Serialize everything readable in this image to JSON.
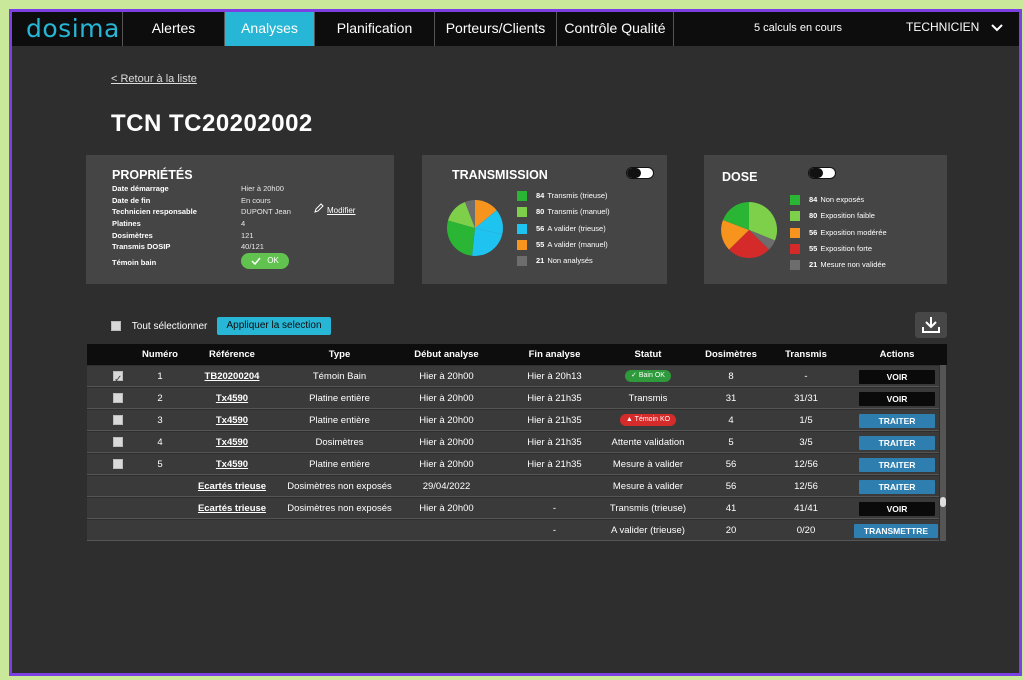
{
  "topbar": {
    "logo": "dosima",
    "tabs": [
      {
        "label": "Alertes"
      },
      {
        "label": "Analyses"
      },
      {
        "label": "Planification"
      },
      {
        "label": "Porteurs/Clients"
      },
      {
        "label": "Contrôle Qualité"
      }
    ],
    "active_tab": "Analyses",
    "calculs": "5 calculs en cours",
    "user": "TECHNICIEN"
  },
  "back_link": "< Retour à la liste",
  "page_title": "TCN  TC20202002",
  "properties": {
    "title": "PROPRIÉTÉS",
    "rows": [
      {
        "label": "Date démarrage",
        "value": "Hier à 20h00"
      },
      {
        "label": "Date de fin",
        "value": "En cours"
      },
      {
        "label": "Technicien responsable",
        "value": "DUPONT Jean"
      },
      {
        "label": "Platines",
        "value": "4"
      },
      {
        "label": "Dosimètres",
        "value": "121"
      },
      {
        "label": "Transmis DOSIP",
        "value": "40/121"
      },
      {
        "label": "Témoin bain",
        "value": ""
      }
    ],
    "modify_label": "Modifier",
    "temoin_status": "OK"
  },
  "transmission": {
    "title": "TRANSMISSION",
    "items": [
      {
        "count": "84",
        "label": "Transmis (trieuse)",
        "color": "#2bb534"
      },
      {
        "count": "80",
        "label": "Transmis (manuel)",
        "color": "#7ed04a"
      },
      {
        "count": "56",
        "label": "A valider (trieuse)",
        "color": "#1ec3f0"
      },
      {
        "count": "55",
        "label": "A valider (manuel)",
        "color": "#f7941d"
      },
      {
        "count": "21",
        "label": "Non analysés",
        "color": "#6d6d6d"
      }
    ]
  },
  "dose": {
    "title": "DOSE",
    "items": [
      {
        "count": "84",
        "label": "Non exposés",
        "color": "#2bb534"
      },
      {
        "count": "80",
        "label": "Exposition faible",
        "color": "#7ed04a"
      },
      {
        "count": "56",
        "label": "Exposition modérée",
        "color": "#f7941d"
      },
      {
        "count": "55",
        "label": "Exposition forte",
        "color": "#d42a2a"
      },
      {
        "count": "21",
        "label": "Mesure non validée",
        "color": "#6d6d6d"
      }
    ]
  },
  "toolbar": {
    "select_all": "Tout sélectionner",
    "apply": "Appliquer la selection"
  },
  "table": {
    "headers": [
      "Numéro",
      "Référence",
      "Type",
      "Début analyse",
      "Fin analyse",
      "Statut",
      "Dosimètres",
      "Transmis",
      "Actions"
    ],
    "rows": [
      {
        "checkbox": true,
        "checked": true,
        "num": "1",
        "ref": "TB20200204",
        "type": "Témoin Bain",
        "debut": "Hier à 20h00",
        "fin": "Hier à 20h13",
        "statut": "Bain OK",
        "statut_kind": "ok",
        "dosimetres": "8",
        "transmis": "-",
        "action": "VOIR",
        "action_kind": "voir"
      },
      {
        "checkbox": true,
        "checked": false,
        "num": "2",
        "ref": "Tx4590",
        "type": "Platine entière",
        "debut": "Hier à 20h00",
        "fin": "Hier à 21h35",
        "statut": "Transmis",
        "statut_kind": "text",
        "dosimetres": "31",
        "transmis": "31/31",
        "action": "VOIR",
        "action_kind": "voir"
      },
      {
        "checkbox": true,
        "checked": false,
        "num": "3",
        "ref": "Tx4590",
        "type": "Platine entière",
        "debut": "Hier à 20h00",
        "fin": "Hier à 21h35",
        "statut": "Témoin KO",
        "statut_kind": "ko",
        "dosimetres": "4",
        "transmis": "1/5",
        "action": "TRAITER",
        "action_kind": "traiter"
      },
      {
        "checkbox": true,
        "checked": false,
        "num": "4",
        "ref": "Tx4590",
        "type": "Dosimètres",
        "debut": "Hier à 20h00",
        "fin": "Hier à 21h35",
        "statut": "Attente validation",
        "statut_kind": "text",
        "dosimetres": "5",
        "transmis": "3/5",
        "action": "TRAITER",
        "action_kind": "traiter"
      },
      {
        "checkbox": true,
        "checked": false,
        "num": "5",
        "ref": "Tx4590",
        "type": "Platine entière",
        "debut": "Hier à 20h00",
        "fin": "Hier à 21h35",
        "statut": "Mesure à valider",
        "statut_kind": "text",
        "dosimetres": "56",
        "transmis": "12/56",
        "action": "TRAITER",
        "action_kind": "traiter"
      },
      {
        "checkbox": false,
        "checked": false,
        "num": "",
        "ref": "Ecartés trieuse",
        "type": "Dosimètres non exposés",
        "debut": "29/04/2022",
        "fin": "",
        "statut": "Mesure à valider",
        "statut_kind": "text",
        "dosimetres": "56",
        "transmis": "12/56",
        "action": "TRAITER",
        "action_kind": "traiter"
      },
      {
        "checkbox": false,
        "checked": false,
        "num": "",
        "ref": "Ecartés trieuse",
        "type": "Dosimètres non exposés",
        "debut": "Hier à 20h00",
        "fin": "-",
        "statut": "Transmis (trieuse)",
        "statut_kind": "text",
        "dosimetres": "41",
        "transmis": "41/41",
        "action": "VOIR",
        "action_kind": "voir"
      },
      {
        "checkbox": false,
        "checked": false,
        "num": "",
        "ref": "",
        "type": "",
        "debut": "",
        "fin": "-",
        "statut": "A valider (trieuse)",
        "statut_kind": "text",
        "dosimetres": "20",
        "transmis": "0/20",
        "action": "TRANSMETTRE",
        "action_kind": "traiter"
      }
    ]
  }
}
